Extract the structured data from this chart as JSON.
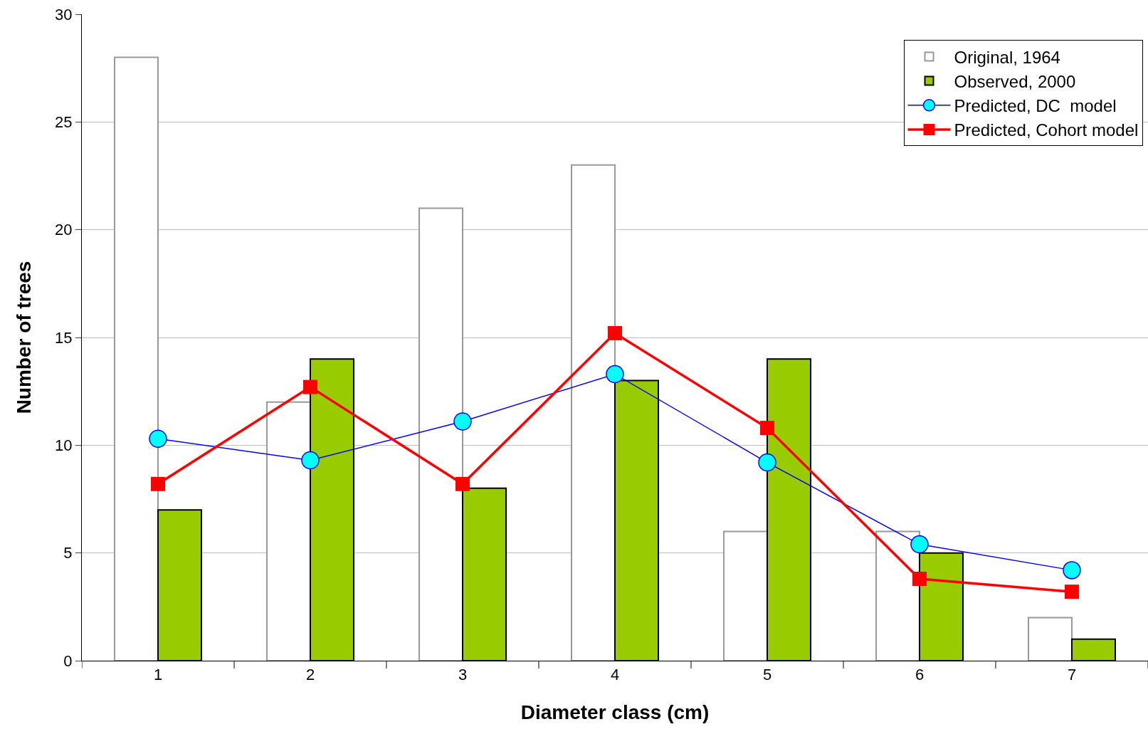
{
  "chart_data": {
    "type": "bar",
    "xlabel": "Diameter class (cm)",
    "ylabel": "Number of trees",
    "categories": [
      "1",
      "2",
      "3",
      "4",
      "5",
      "6",
      "7"
    ],
    "series": [
      {
        "name": "Original, 1964",
        "color": "#ffffff",
        "values": [
          28,
          12,
          21,
          23,
          6,
          6,
          2
        ]
      },
      {
        "name": "Observed, 2000",
        "color": "#99cc00",
        "values": [
          7,
          14,
          8,
          13,
          14,
          5,
          1
        ]
      },
      {
        "name": "Predicted, DC  model",
        "type": "line",
        "color": "#0000ff",
        "marker": "circle",
        "values": [
          10.3,
          9.3,
          11.1,
          13.3,
          9.2,
          5.4,
          4.2
        ]
      },
      {
        "name": "Predicted, Cohort model",
        "type": "line",
        "color": "#ff0000",
        "marker": "square",
        "values": [
          8.2,
          12.7,
          8.2,
          15.2,
          10.8,
          3.8,
          3.2
        ]
      }
    ],
    "ylim": [
      0,
      30
    ],
    "yticks": [
      0,
      5,
      10,
      15,
      20,
      25,
      30
    ],
    "grid": "y",
    "legend": "top right"
  }
}
